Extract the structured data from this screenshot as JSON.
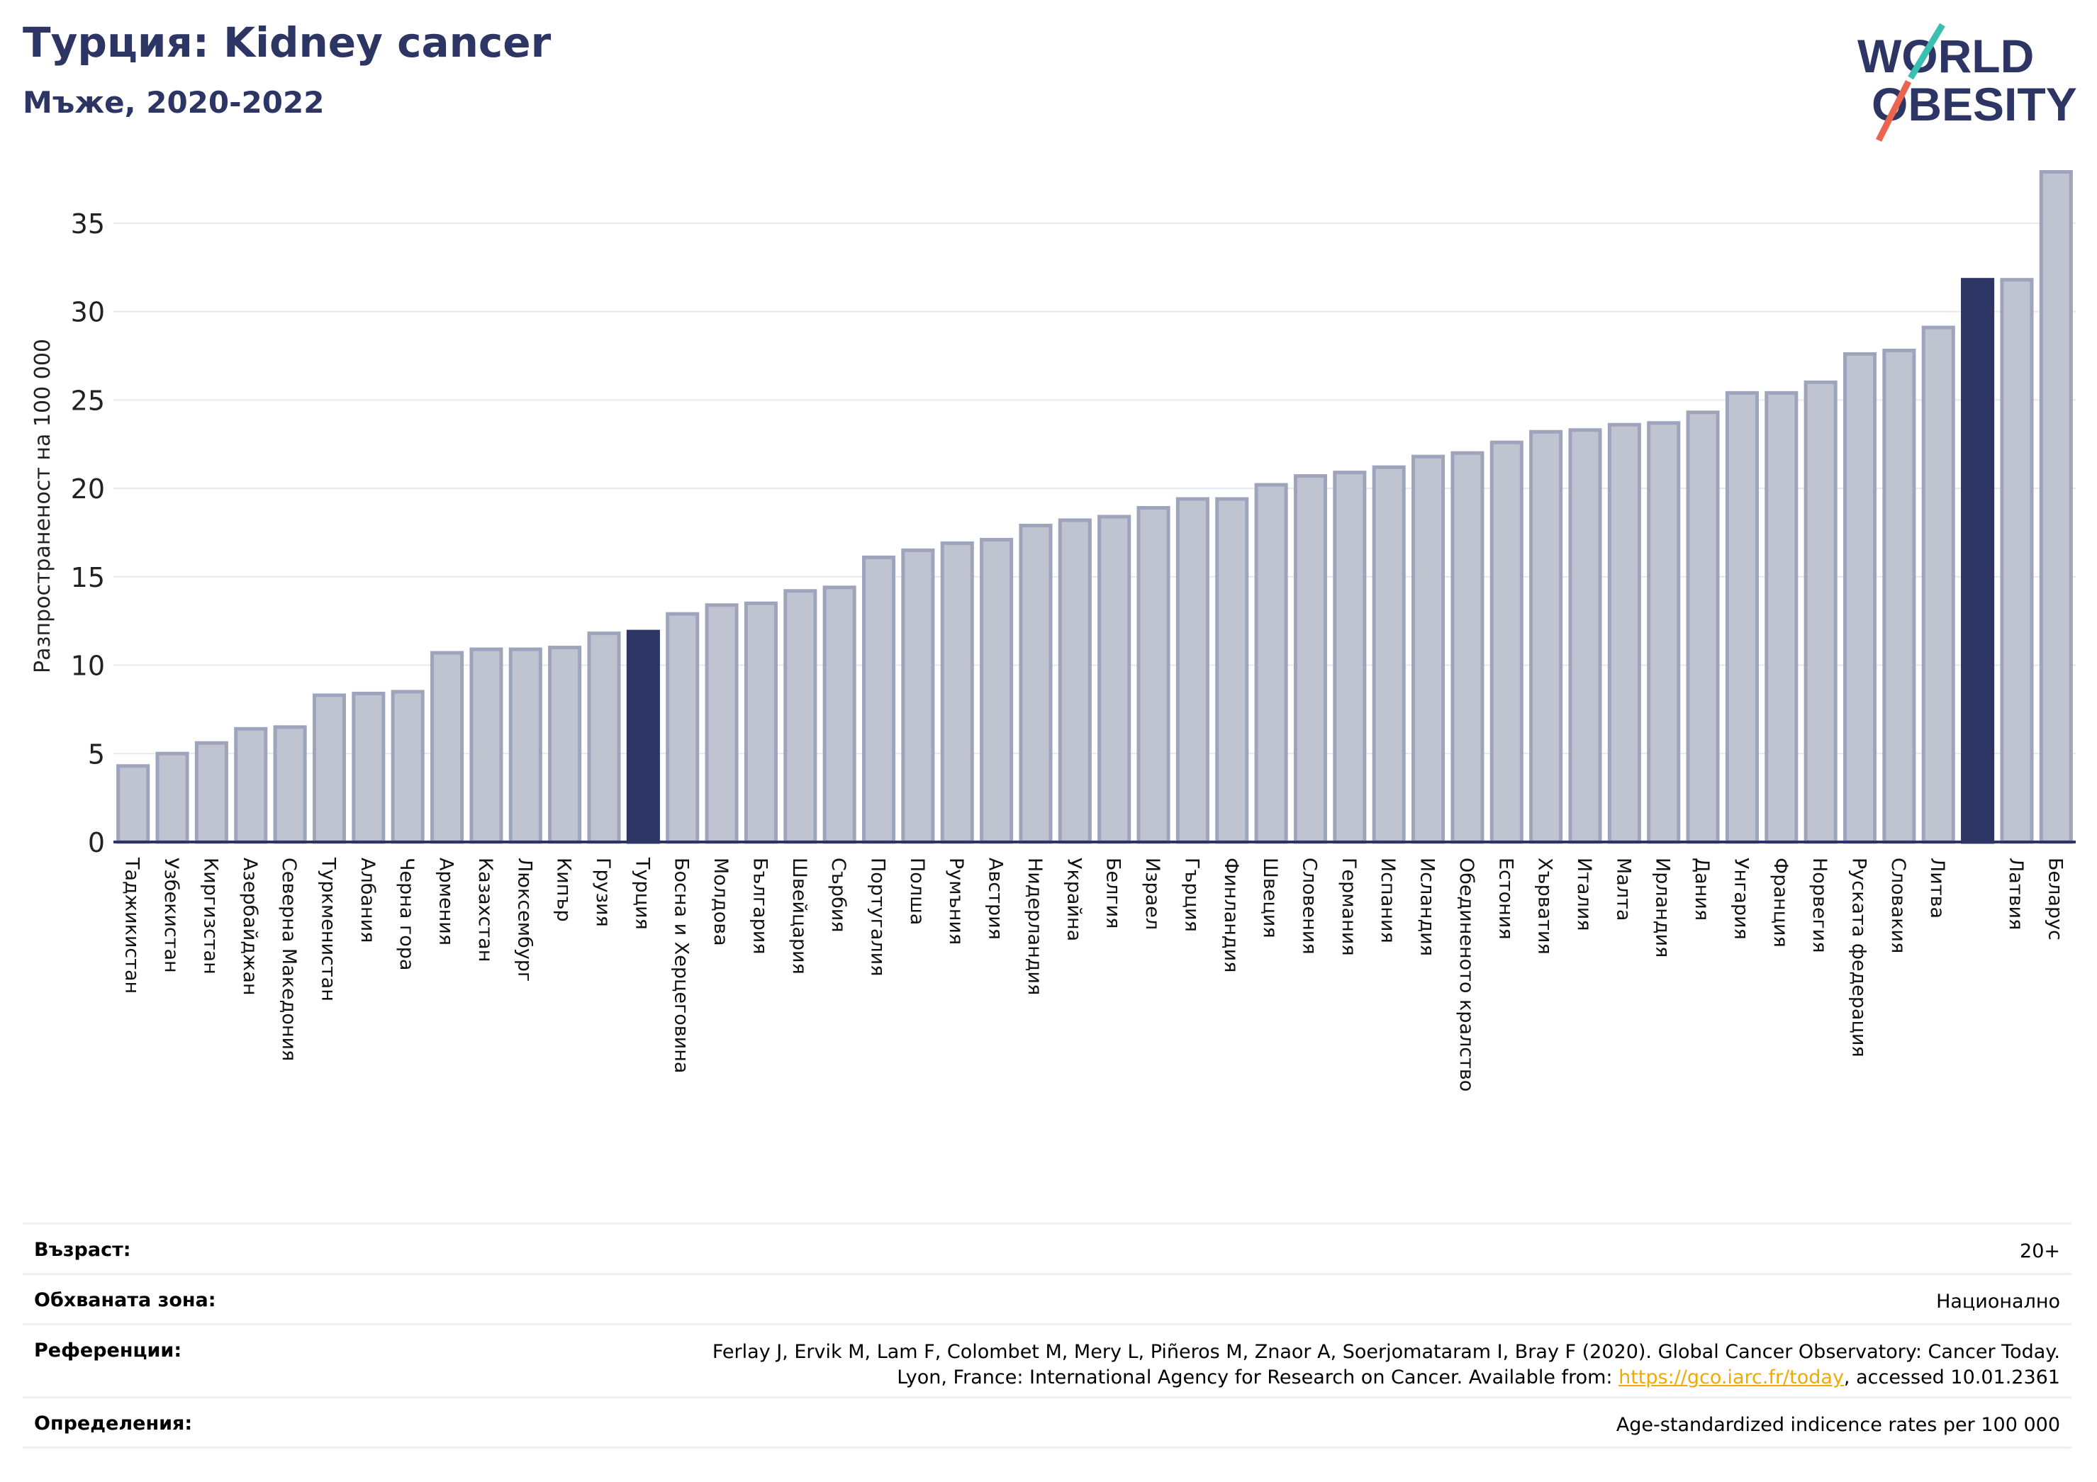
{
  "header": {
    "title": "Турция: Kidney cancer",
    "subtitle": "Мъже, 2020-2022"
  },
  "logo": {
    "line1": "WORLD",
    "line2": "OBESITY"
  },
  "colors": {
    "bar": "#c0c3d0",
    "bar_border": "#9fa4bd",
    "highlight": "#2c3563",
    "grid": "#e6e8ef",
    "axis": "#2c3563"
  },
  "chart_data": {
    "type": "bar",
    "ylabel": "Разпространеност  на 100 000",
    "ylim": [
      0,
      38
    ],
    "yticks": [
      0,
      5,
      10,
      15,
      20,
      25,
      30,
      35
    ],
    "grid": true,
    "categories": [
      "Таджикистан",
      "Узбекистан",
      "Киргизстан",
      "Азербайджан",
      "Северна Македония",
      "Туркменистан",
      "Албания",
      "Черна гора",
      "Армения",
      "Казахстан",
      "Люксембург",
      "Кипър",
      "Грузия",
      "Турция",
      "Босна и Херцеговина",
      "Молдова",
      "България",
      "Швейцария",
      "Сърбия",
      "Португалия",
      "Полша",
      "Румъния",
      "Австрия",
      "Нидерландия",
      "Украйна",
      "Белгия",
      "Израел",
      "Гърция",
      "Финландия",
      "Швеция",
      "Словения",
      "Германия",
      "Испания",
      "Исландия",
      "Обединеното кралство",
      "Естония",
      "Хърватия",
      "Италия",
      "Малта",
      "Ирландия",
      "Дания",
      "Унгария",
      "Франция",
      "Норвегия",
      "Руската федерация",
      "Словакия",
      "Литва",
      "",
      "Латвия",
      "Беларус"
    ],
    "values": [
      4.3,
      5.0,
      5.6,
      6.4,
      6.5,
      8.3,
      8.4,
      8.5,
      10.7,
      10.9,
      10.9,
      11.0,
      11.8,
      11.9,
      12.9,
      13.4,
      13.5,
      14.2,
      14.4,
      16.1,
      16.5,
      16.9,
      17.1,
      17.9,
      18.2,
      18.4,
      18.9,
      19.4,
      19.4,
      20.2,
      20.7,
      20.9,
      21.2,
      21.8,
      22.0,
      22.6,
      23.2,
      23.3,
      23.6,
      23.7,
      24.3,
      25.4,
      25.4,
      26.0,
      27.6,
      27.8,
      29.1,
      31.8,
      31.8,
      37.9
    ],
    "highlighted": [
      13,
      47
    ]
  },
  "meta": {
    "age_label": "Възраст:",
    "age_value": "20+",
    "area_label": "Обхваната зона:",
    "area_value": "Национално",
    "ref_label": "Референции:",
    "ref_line1": "Ferlay J, Ervik M, Lam F, Colombet M, Mery L, Piñeros M, Znaor A, Soerjomataram I, Bray F (2020). Global Cancer Observatory: Cancer Today.",
    "ref_line2_before": "Lyon, France: International Agency for Research on Cancer. Available from: ",
    "ref_link": "https://gco.iarc.fr/today",
    "ref_line2_after": ", accessed 10.01.2361",
    "def_label": "Определения:",
    "def_value": "Age-standardized indicence rates per 100 000"
  }
}
